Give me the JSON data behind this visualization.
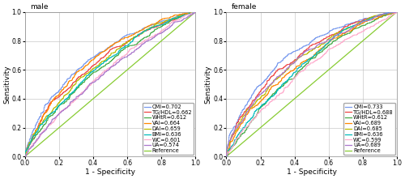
{
  "panels": [
    {
      "title": "male",
      "curves": [
        {
          "label": "CMI=0.702",
          "color": "#7799ee",
          "auc": 0.702,
          "seed": 1
        },
        {
          "label": "TG/HDL=0.662",
          "color": "#ee4444",
          "auc": 0.662,
          "seed": 2
        },
        {
          "label": "WHtR=0.612",
          "color": "#44aa44",
          "auc": 0.612,
          "seed": 3
        },
        {
          "label": "VAI=0.664",
          "color": "#ff8800",
          "auc": 0.664,
          "seed": 4
        },
        {
          "label": "DAI=0.659",
          "color": "#bbbb00",
          "auc": 0.659,
          "seed": 5
        },
        {
          "label": "BMI=0.636",
          "color": "#00bbbb",
          "auc": 0.636,
          "seed": 6
        },
        {
          "label": "WC=0.601",
          "color": "#ffaacc",
          "auc": 0.601,
          "seed": 7
        },
        {
          "label": "UA=0.574",
          "color": "#aa77cc",
          "auc": 0.574,
          "seed": 8
        }
      ]
    },
    {
      "title": "female",
      "curves": [
        {
          "label": "CMI=0.733",
          "color": "#7799ee",
          "auc": 0.733,
          "seed": 11
        },
        {
          "label": "TG/HDL=0.688",
          "color": "#ee4444",
          "auc": 0.688,
          "seed": 12
        },
        {
          "label": "WHtR=0.612",
          "color": "#44aa44",
          "auc": 0.612,
          "seed": 13
        },
        {
          "label": "VAI=0.689",
          "color": "#ff8800",
          "auc": 0.689,
          "seed": 14
        },
        {
          "label": "DAI=0.685",
          "color": "#bbbb00",
          "auc": 0.685,
          "seed": 15
        },
        {
          "label": "BMI=0.636",
          "color": "#00bbbb",
          "auc": 0.636,
          "seed": 16
        },
        {
          "label": "WC=0.599",
          "color": "#ffaacc",
          "auc": 0.599,
          "seed": 17
        },
        {
          "label": "UA=0.689",
          "color": "#aa77cc",
          "auc": 0.689,
          "seed": 18
        }
      ]
    }
  ],
  "reference_color": "#88cc33",
  "xlabel": "1 - Specificity",
  "ylabel": "Sensitivity",
  "legend_fontsize": 4.8,
  "axis_fontsize": 6.5,
  "title_fontsize": 6.5,
  "tick_fontsize": 5.5
}
